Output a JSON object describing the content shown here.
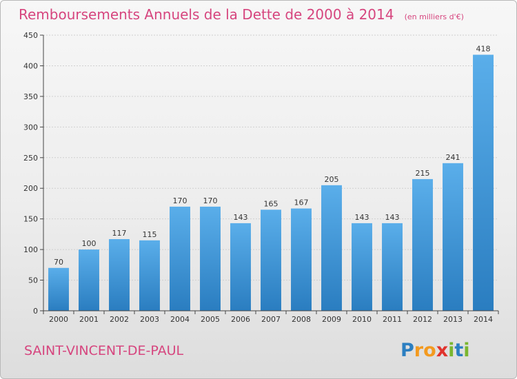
{
  "title": "Remboursements Annuels de la Dette de 2000 à 2014",
  "unit_label": "(en milliers d'€)",
  "commune": "SAINT-VINCENT-DE-PAUL",
  "logo": {
    "text": "Proxiti",
    "letters": [
      "P",
      "r",
      "o",
      "x",
      "i",
      "t",
      "i"
    ],
    "colors": [
      "#2c7fc1",
      "#f39a1f",
      "#f39a1f",
      "#e0332d",
      "#7ab62f",
      "#2c7fc1",
      "#7ab62f"
    ]
  },
  "colors": {
    "title": "#d6457e",
    "bar_light": "#5aaeea",
    "bar_dark": "#2a7dc0",
    "grid": "#cfcfcf",
    "axis": "#444444"
  },
  "chart_data": {
    "type": "bar",
    "categories": [
      "2000",
      "2001",
      "2002",
      "2003",
      "2004",
      "2005",
      "2006",
      "2007",
      "2008",
      "2009",
      "2010",
      "2011",
      "2012",
      "2013",
      "2014"
    ],
    "values": [
      70,
      100,
      117,
      115,
      170,
      170,
      143,
      165,
      167,
      205,
      143,
      143,
      215,
      241,
      418
    ],
    "y_ticks": [
      0,
      50,
      100,
      150,
      200,
      250,
      300,
      350,
      400,
      450
    ],
    "ylim": [
      0,
      450
    ],
    "grid": true,
    "title": "Remboursements Annuels de la Dette de 2000 à 2014",
    "xlabel": "",
    "ylabel": ""
  }
}
